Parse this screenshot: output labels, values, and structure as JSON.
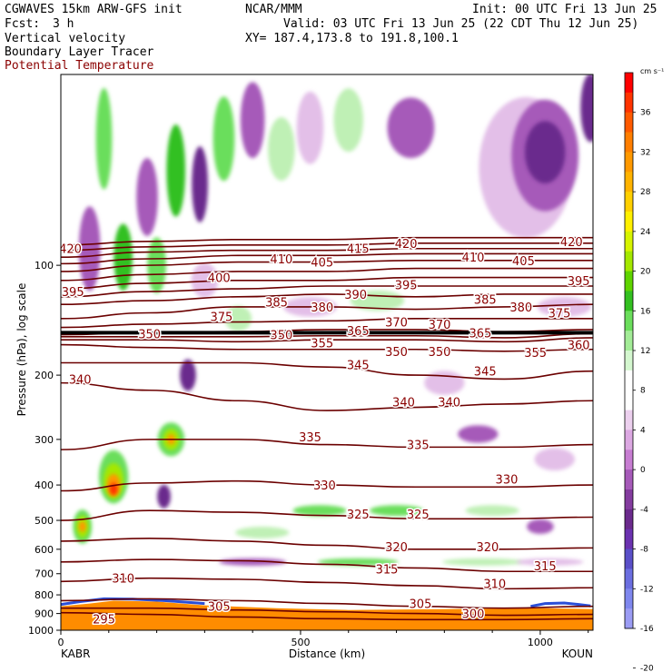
{
  "header": {
    "model": "CGWAVES 15km ARW-GFS init",
    "org": "NCAR/MMM",
    "init": "Init: 00 UTC Fri 13 Jun 25",
    "fcst_label": "Fcst:",
    "fcst_value": "3 h",
    "valid": "Valid: 03 UTC Fri 13 Jun 25 (22 CDT Thu 12 Jun 25)",
    "field1": "Vertical velocity",
    "field2": "Boundary Layer Tracer",
    "field3": "Potential Temperature",
    "xy": "XY= 187.4,173.8 to 191.8,100.1"
  },
  "colors": {
    "theta_contour": "#6b0000",
    "field3_text": "#8b0000",
    "tropopause": "#000000",
    "terrain": "#ff8c00"
  },
  "chart_data": {
    "type": "heatmap",
    "ylabel": "Pressure (hPa), log scale",
    "xlabel": "Distance (km)",
    "y_scale": "log",
    "ylim": [
      1000,
      30
    ],
    "xlim": [
      0,
      1110
    ],
    "x_ticks": [
      0,
      500,
      1000
    ],
    "x_tick_labels": [
      "0",
      "500",
      "1000"
    ],
    "y_ticks": [
      100,
      200,
      300,
      400,
      500,
      600,
      700,
      800,
      900,
      1000
    ],
    "y_tick_labels": [
      "100",
      "200",
      "300",
      "400",
      "500",
      "600",
      "700",
      "800",
      "900",
      "1000"
    ],
    "left_endpoint": "KABR",
    "right_endpoint": "KOUN",
    "colorbar": {
      "unit": "cm s⁻¹",
      "tick_labels": [
        "36",
        "32",
        "28",
        "24",
        "20",
        "16",
        "12",
        "8",
        "4",
        "0",
        "-4",
        "-8",
        "-12",
        "-16",
        "-20"
      ],
      "colors": [
        "#ff0000",
        "#ff3300",
        "#ff5a00",
        "#ff7e00",
        "#ff9900",
        "#ffb300",
        "#ffd000",
        "#fff000",
        "#d7f400",
        "#a4e800",
        "#5fd400",
        "#33c020",
        "#6bde5c",
        "#a3ec97",
        "#d4f7cf",
        "#ffffff",
        "#ffffff",
        "#ecd0ee",
        "#dca8e2",
        "#c77dd2",
        "#a65ab9",
        "#843c9f",
        "#6b2a8d",
        "#6b32b0",
        "#5a4fc8",
        "#6b6ee0",
        "#7f87ee",
        "#9b9cf4"
      ]
    },
    "theta_contours": [
      {
        "level": 295,
        "p": [
          895,
          905,
          920,
          930,
          935,
          935,
          930
        ]
      },
      {
        "level": 300,
        "p": [
          870,
          870,
          880,
          890,
          900,
          910,
          905
        ]
      },
      {
        "level": 305,
        "p": [
          830,
          820,
          830,
          845,
          860,
          870,
          860
        ]
      },
      {
        "level": 310,
        "p": [
          735,
          720,
          725,
          740,
          755,
          770,
          765
        ]
      },
      {
        "level": 315,
        "p": [
          650,
          640,
          645,
          660,
          675,
          690,
          690
        ]
      },
      {
        "level": 320,
        "p": [
          570,
          560,
          570,
          585,
          600,
          600,
          595
        ]
      },
      {
        "level": 325,
        "p": [
          500,
          470,
          475,
          485,
          495,
          495,
          490
        ]
      },
      {
        "level": 330,
        "p": [
          415,
          395,
          390,
          400,
          405,
          405,
          400
        ]
      },
      {
        "level": 335,
        "p": [
          320,
          300,
          300,
          310,
          315,
          315,
          310
        ]
      },
      {
        "level": 340,
        "p": [
          210,
          220,
          235,
          250,
          245,
          240,
          235
        ]
      },
      {
        "level": 345,
        "p": [
          185,
          185,
          185,
          190,
          200,
          205,
          195
        ]
      },
      {
        "level": 350,
        "p": [
          165,
          168,
          170,
          170,
          170,
          172,
          170
        ]
      },
      {
        "level": 355,
        "p": [
          160,
          160,
          162,
          160,
          160,
          162,
          158
        ]
      },
      {
        "level": 360,
        "p": [
          157,
          157,
          157,
          156,
          156,
          158,
          154
        ]
      },
      {
        "level": 365,
        "p": [
          155,
          153,
          152,
          150,
          150,
          152,
          150
        ]
      },
      {
        "level": 370,
        "p": [
          148,
          145,
          143,
          142,
          140,
          140,
          140
        ]
      },
      {
        "level": 375,
        "p": [
          140,
          135,
          130,
          130,
          132,
          130,
          128
        ]
      },
      {
        "level": 380,
        "p": [
          128,
          125,
          122,
          120,
          122,
          120,
          120
        ]
      },
      {
        "level": 385,
        "p": [
          122,
          118,
          116,
          114,
          114,
          114,
          114
        ]
      },
      {
        "level": 390,
        "p": [
          116,
          112,
          110,
          110,
          108,
          108,
          108
        ]
      },
      {
        "level": 395,
        "p": [
          110,
          106,
          104,
          104,
          102,
          102,
          102
        ]
      },
      {
        "level": 400,
        "p": [
          104,
          100,
          98,
          98,
          97,
          97,
          97
        ]
      },
      {
        "level": 405,
        "p": [
          99,
          96,
          94,
          94,
          93,
          93,
          93
        ]
      },
      {
        "level": 410,
        "p": [
          95,
          92,
          91,
          91,
          90,
          90,
          90
        ]
      },
      {
        "level": 415,
        "p": [
          91,
          89,
          88,
          88,
          87,
          87,
          87
        ]
      },
      {
        "level": 420,
        "p": [
          88,
          86,
          85,
          85,
          84,
          84,
          84
        ]
      }
    ],
    "theta_x": [
      0,
      185,
      370,
      555,
      740,
      925,
      1110
    ],
    "contour_labels": [
      {
        "text": "420",
        "x": 20,
        "p": 90
      },
      {
        "text": "420",
        "x": 720,
        "p": 87
      },
      {
        "text": "420",
        "x": 1065,
        "p": 86
      },
      {
        "text": "415",
        "x": 620,
        "p": 90
      },
      {
        "text": "410",
        "x": 460,
        "p": 96
      },
      {
        "text": "410",
        "x": 860,
        "p": 95
      },
      {
        "text": "405",
        "x": 545,
        "p": 98
      },
      {
        "text": "405",
        "x": 965,
        "p": 97
      },
      {
        "text": "400",
        "x": 330,
        "p": 108
      },
      {
        "text": "395",
        "x": 25,
        "p": 118
      },
      {
        "text": "395",
        "x": 720,
        "p": 113
      },
      {
        "text": "395",
        "x": 1080,
        "p": 110
      },
      {
        "text": "390",
        "x": 615,
        "p": 120
      },
      {
        "text": "385",
        "x": 450,
        "p": 126
      },
      {
        "text": "385",
        "x": 885,
        "p": 124
      },
      {
        "text": "380",
        "x": 545,
        "p": 130
      },
      {
        "text": "380",
        "x": 960,
        "p": 130
      },
      {
        "text": "375",
        "x": 335,
        "p": 138
      },
      {
        "text": "375",
        "x": 1040,
        "p": 135
      },
      {
        "text": "370",
        "x": 700,
        "p": 143
      },
      {
        "text": "370",
        "x": 790,
        "p": 145
      },
      {
        "text": "365",
        "x": 620,
        "p": 151
      },
      {
        "text": "365",
        "x": 875,
        "p": 153
      },
      {
        "text": "360",
        "x": 1080,
        "p": 165
      },
      {
        "text": "355",
        "x": 545,
        "p": 163
      },
      {
        "text": "355",
        "x": 990,
        "p": 173
      },
      {
        "text": "350",
        "x": 700,
        "p": 172
      },
      {
        "text": "350",
        "x": 790,
        "p": 172
      },
      {
        "text": "345",
        "x": 620,
        "p": 187
      },
      {
        "text": "345",
        "x": 885,
        "p": 195
      },
      {
        "text": "340",
        "x": 40,
        "p": 205
      },
      {
        "text": "340",
        "x": 715,
        "p": 237
      },
      {
        "text": "340",
        "x": 810,
        "p": 237
      },
      {
        "text": "335",
        "x": 520,
        "p": 295
      },
      {
        "text": "335",
        "x": 745,
        "p": 310
      },
      {
        "text": "330",
        "x": 550,
        "p": 400
      },
      {
        "text": "330",
        "x": 930,
        "p": 385
      },
      {
        "text": "325",
        "x": 620,
        "p": 480
      },
      {
        "text": "325",
        "x": 745,
        "p": 480
      },
      {
        "text": "320",
        "x": 700,
        "p": 590
      },
      {
        "text": "320",
        "x": 890,
        "p": 590
      },
      {
        "text": "315",
        "x": 680,
        "p": 680
      },
      {
        "text": "315",
        "x": 1010,
        "p": 665
      },
      {
        "text": "310",
        "x": 130,
        "p": 720
      },
      {
        "text": "310",
        "x": 905,
        "p": 745
      },
      {
        "text": "305",
        "x": 330,
        "p": 860
      },
      {
        "text": "305",
        "x": 750,
        "p": 845
      },
      {
        "text": "300",
        "x": 860,
        "p": 900
      },
      {
        "text": "295",
        "x": 90,
        "p": 930
      },
      {
        "text": "350",
        "x": 460,
        "p": 155
      },
      {
        "text": "350",
        "x": 185,
        "p": 154
      }
    ],
    "tropopause_p": 153,
    "vv_blobs": [
      {
        "x": 45,
        "p": 520,
        "rx": 14,
        "ry": 70,
        "v": 8
      },
      {
        "x": 45,
        "p": 520,
        "rx": 9,
        "ry": 45,
        "v": 16
      },
      {
        "x": 45,
        "p": 520,
        "rx": 5,
        "ry": 22,
        "v": 28
      },
      {
        "x": 110,
        "p": 380,
        "rx": 22,
        "ry": 80,
        "v": 8
      },
      {
        "x": 110,
        "p": 390,
        "rx": 15,
        "ry": 55,
        "v": 16
      },
      {
        "x": 110,
        "p": 400,
        "rx": 10,
        "ry": 35,
        "v": 28
      },
      {
        "x": 110,
        "p": 410,
        "rx": 6,
        "ry": 20,
        "v": 36
      },
      {
        "x": 230,
        "p": 300,
        "rx": 20,
        "ry": 40,
        "v": 8
      },
      {
        "x": 230,
        "p": 300,
        "rx": 12,
        "ry": 25,
        "v": 16
      },
      {
        "x": 230,
        "p": 300,
        "rx": 6,
        "ry": 12,
        "v": 28
      },
      {
        "x": 215,
        "p": 430,
        "rx": 10,
        "ry": 40,
        "v": -12
      },
      {
        "x": 265,
        "p": 200,
        "rx": 12,
        "ry": 25,
        "v": -12
      },
      {
        "x": 370,
        "p": 140,
        "rx": 20,
        "ry": 14,
        "v": 4
      },
      {
        "x": 800,
        "p": 210,
        "rx": 30,
        "ry": 20,
        "v": -4
      },
      {
        "x": 870,
        "p": 290,
        "rx": 30,
        "ry": 20,
        "v": -8
      },
      {
        "x": 1000,
        "p": 520,
        "rx": 20,
        "ry": 30,
        "v": -8
      },
      {
        "x": 1030,
        "p": 340,
        "rx": 30,
        "ry": 30,
        "v": -4
      },
      {
        "x": 420,
        "p": 540,
        "rx": 40,
        "ry": 25,
        "v": 4
      },
      {
        "x": 540,
        "p": 470,
        "rx": 40,
        "ry": 20,
        "v": 8
      },
      {
        "x": 700,
        "p": 470,
        "rx": 40,
        "ry": 20,
        "v": 8
      },
      {
        "x": 900,
        "p": 470,
        "rx": 40,
        "ry": 20,
        "v": 4
      },
      {
        "x": 400,
        "p": 650,
        "rx": 50,
        "ry": 15,
        "v": -8
      },
      {
        "x": 620,
        "p": 650,
        "rx": 60,
        "ry": 15,
        "v": 8
      },
      {
        "x": 880,
        "p": 650,
        "rx": 60,
        "ry": 15,
        "v": 4
      },
      {
        "x": 1020,
        "p": 650,
        "rx": 50,
        "ry": 15,
        "v": -4
      },
      {
        "x": 970,
        "p": 54,
        "rx": 70,
        "ry": 30,
        "v": -4
      },
      {
        "x": 1010,
        "p": 50,
        "rx": 50,
        "ry": 22,
        "v": -8
      },
      {
        "x": 1010,
        "p": 49,
        "rx": 30,
        "ry": 12,
        "v": -12
      },
      {
        "x": 730,
        "p": 42,
        "rx": 35,
        "ry": 10,
        "v": -8
      },
      {
        "x": 1105,
        "p": 37,
        "rx": 15,
        "ry": 10,
        "v": -12
      },
      {
        "x": 60,
        "p": 90,
        "rx": 16,
        "ry": 30,
        "v": -8
      },
      {
        "x": 130,
        "p": 95,
        "rx": 14,
        "ry": 25,
        "v": 12
      },
      {
        "x": 180,
        "p": 65,
        "rx": 16,
        "ry": 20,
        "v": -8
      },
      {
        "x": 240,
        "p": 55,
        "rx": 14,
        "ry": 20,
        "v": 12
      },
      {
        "x": 290,
        "p": 60,
        "rx": 12,
        "ry": 18,
        "v": -12
      },
      {
        "x": 340,
        "p": 45,
        "rx": 16,
        "ry": 15,
        "v": 8
      },
      {
        "x": 400,
        "p": 40,
        "rx": 18,
        "ry": 12,
        "v": -8
      },
      {
        "x": 460,
        "p": 48,
        "rx": 20,
        "ry": 12,
        "v": 4
      },
      {
        "x": 520,
        "p": 42,
        "rx": 20,
        "ry": 12,
        "v": -4
      },
      {
        "x": 600,
        "p": 40,
        "rx": 22,
        "ry": 10,
        "v": 4
      },
      {
        "x": 90,
        "p": 45,
        "rx": 12,
        "ry": 18,
        "v": 8
      },
      {
        "x": 200,
        "p": 100,
        "rx": 14,
        "ry": 22,
        "v": 8
      },
      {
        "x": 300,
        "p": 110,
        "rx": 20,
        "ry": 15,
        "v": -4
      },
      {
        "x": 520,
        "p": 130,
        "rx": 40,
        "ry": 10,
        "v": -4
      },
      {
        "x": 660,
        "p": 125,
        "rx": 40,
        "ry": 10,
        "v": 4
      },
      {
        "x": 1050,
        "p": 130,
        "rx": 40,
        "ry": 10,
        "v": -4
      }
    ]
  }
}
